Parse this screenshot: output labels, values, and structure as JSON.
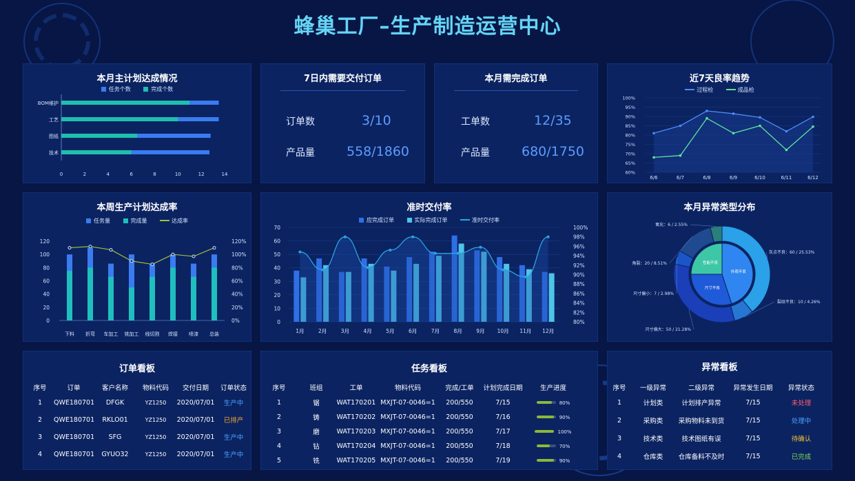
{
  "header": {
    "title": "蜂巢工厂–生产制造运营中心"
  },
  "monthly_plan": {
    "title": "本月主计划达成情况",
    "legend": [
      "任务个数",
      "完成个数"
    ],
    "colors": [
      "#3a7cf0",
      "#1fbfae"
    ],
    "chart_data": {
      "type": "bar",
      "orientation": "horizontal",
      "categories": [
        "BOM维护",
        "工艺",
        "图纸",
        "技术"
      ],
      "series": [
        {
          "name": "任务个数",
          "values": [
            13.5,
            13.5,
            12.8,
            12.7
          ]
        },
        {
          "name": "完成个数",
          "values": [
            11,
            10,
            6.5,
            6
          ]
        }
      ],
      "xlim": [
        0,
        14
      ],
      "xticks": [
        "0",
        "2",
        "4",
        "6",
        "8",
        "10",
        "12",
        "14"
      ]
    }
  },
  "delivery7": {
    "title": "7日内需要交付订单",
    "order_label": "订单数",
    "order_value": "3/10",
    "product_label": "产品量",
    "product_value": "558/1860"
  },
  "month_orders": {
    "title": "本月需完成订单",
    "order_label": "工单数",
    "order_value": "12/35",
    "product_label": "产品量",
    "product_value": "680/1750"
  },
  "yield_trend": {
    "title": "近7天良率趋势",
    "legend": [
      "过程检",
      "成品检"
    ],
    "colors": [
      "#4d8cf5",
      "#5fe39a"
    ],
    "chart_data": {
      "type": "line",
      "x": [
        "6/6",
        "6/7",
        "6/8",
        "6/9",
        "6/10",
        "6/11",
        "6/12"
      ],
      "series": [
        {
          "name": "过程检",
          "values": [
            81,
            85,
            93,
            91.5,
            89.5,
            82,
            89.8
          ]
        },
        {
          "name": "成品检",
          "values": [
            68,
            69,
            89,
            81,
            85,
            72,
            84.5
          ]
        }
      ],
      "ylim": [
        60,
        100
      ],
      "yticks": [
        "60%",
        "65%",
        "70%",
        "75%",
        "80%",
        "85%",
        "90%",
        "95%",
        "100%"
      ]
    }
  },
  "weekly_plan": {
    "title": "本周生产计划达成率",
    "legend": [
      "任务量",
      "完成量",
      "达成率"
    ],
    "colors": [
      "#3a7cf0",
      "#1fbfbf",
      "#9cc23c"
    ],
    "chart_data": {
      "type": "bar",
      "categories": [
        "下料",
        "折弯",
        "车加工",
        "铣加工",
        "线切割",
        "焊接",
        "喷漆",
        "总装"
      ],
      "series": [
        {
          "name": "任务量",
          "values": [
            100,
            110,
            86,
            100,
            86,
            100,
            86,
            100
          ]
        },
        {
          "name": "完成量",
          "values": [
            75,
            80,
            66,
            50,
            66,
            80,
            66,
            80
          ]
        },
        {
          "name": "达成率",
          "values": [
            110,
            112,
            107,
            90,
            85,
            100,
            97,
            110
          ]
        }
      ],
      "ylim_left": [
        0,
        120
      ],
      "ylim_right": [
        0,
        120
      ],
      "yticks_left": [
        "0",
        "20",
        "40",
        "60",
        "80",
        "100",
        "120"
      ],
      "yticks_right": [
        "0%",
        "20%",
        "40%",
        "60%",
        "80%",
        "100%",
        "120%"
      ]
    }
  },
  "ontime": {
    "title": "准时交付率",
    "legend": [
      "应完成订单",
      "实际完成订单",
      "准时交付率"
    ],
    "colors": [
      "#2f6fe8",
      "#4fc3e8",
      "#2aa5e0"
    ],
    "chart_data": {
      "type": "bar",
      "categories": [
        "1月",
        "2月",
        "3月",
        "4月",
        "5月",
        "6月",
        "7月",
        "8月",
        "9月",
        "10月",
        "11月",
        "12月"
      ],
      "series": [
        {
          "name": "应完成订单",
          "values": [
            38,
            47,
            37,
            47,
            41,
            48,
            52,
            64,
            53,
            48,
            42,
            37
          ]
        },
        {
          "name": "实际完成订单",
          "values": [
            33,
            42,
            37,
            43,
            38,
            43,
            49,
            58,
            52,
            43,
            39,
            36
          ]
        },
        {
          "name": "准时交付率",
          "values": [
            94.8,
            91,
            98,
            91.5,
            95.2,
            98,
            94.5,
            94.5,
            95.8,
            91,
            89.5,
            98
          ]
        }
      ],
      "ylim_left": [
        0,
        70
      ],
      "ylim_right": [
        80,
        100
      ],
      "yticks_left": [
        "0",
        "10",
        "20",
        "30",
        "40",
        "50",
        "60",
        "70"
      ],
      "yticks_right": [
        "80%",
        "82%",
        "84%",
        "86%",
        "88%",
        "90%",
        "92%",
        "94%",
        "96%",
        "98%",
        "100%"
      ]
    }
  },
  "anomaly": {
    "title": "本月异常类型分布",
    "chart_data": {
      "type": "pie",
      "inner": [
        {
          "name": "外观不良",
          "value": 45,
          "color": "#2f86f0"
        },
        {
          "name": "尺寸不良",
          "value": 30,
          "color": "#1f5ad8"
        },
        {
          "name": "性能不良",
          "value": 25,
          "color": "#3ec7a6"
        }
      ],
      "outer": [
        {
          "label": "灰点不良：60 / 25.53%",
          "value": 25.53,
          "color": "#2aa1e8"
        },
        {
          "label": "裂纹不良：10 / 4.26%",
          "value": 4.26,
          "color": "#2676d4"
        },
        {
          "label": "尺寸偏大：50 / 21.28%",
          "value": 21.28,
          "color": "#1a3fb8"
        },
        {
          "label": "尺寸偏小：7 / 2.98%",
          "value": 2.98,
          "color": "#1b56c9"
        },
        {
          "label": "角裂：20 / 8.51%",
          "value": 8.51,
          "color": "#1f4a8f"
        },
        {
          "label": "氧化：6 / 2.55%",
          "value": 2.55,
          "color": "#2a7f7a"
        }
      ]
    }
  },
  "order_board": {
    "title": "订单看板",
    "headers": [
      "序号",
      "订单",
      "客户名称",
      "物料代码",
      "交付日期",
      "订单状态"
    ],
    "rows": [
      {
        "no": "1",
        "order": "QWE180701",
        "customer": "DFGK",
        "code": "YZ1250",
        "date": "2020/07/01",
        "status": "生产中",
        "color": "#4aa0ff"
      },
      {
        "no": "2",
        "order": "QWE180701",
        "customer": "RKLO01",
        "code": "YZ1250",
        "date": "2020/07/01",
        "status": "已排产",
        "color": "#f2a531"
      },
      {
        "no": "3",
        "order": "QWE180701",
        "customer": "SFG",
        "code": "YZ1250",
        "date": "2020/07/01",
        "status": "生产中",
        "color": "#4aa0ff"
      },
      {
        "no": "4",
        "order": "QWE180701",
        "customer": "GYUO32",
        "code": "YZ1250",
        "date": "2020/07/01",
        "status": "生产中",
        "color": "#4aa0ff"
      }
    ]
  },
  "task_board": {
    "title": "任务看板",
    "headers": [
      "序号",
      "班组",
      "工单",
      "物料代码",
      "完成/工单",
      "计划完成日期",
      "生产进度"
    ],
    "rows": [
      {
        "no": "1",
        "team": "锯",
        "wo": "WAT170201",
        "code": "MXJT-07-0046=1",
        "done": "200/550",
        "date": "7/15",
        "progress": 0.8,
        "pct": "80%"
      },
      {
        "no": "2",
        "team": "铸",
        "wo": "WAT170202",
        "code": "MXJT-07-0046=1",
        "done": "200/550",
        "date": "7/16",
        "progress": 0.9,
        "pct": "90%"
      },
      {
        "no": "3",
        "team": "磨",
        "wo": "WAT170203",
        "code": "MXJT-07-0046=1",
        "done": "200/550",
        "date": "7/17",
        "progress": 1.0,
        "pct": "100%"
      },
      {
        "no": "4",
        "team": "钻",
        "wo": "WAT170204",
        "code": "MXJT-07-0046=1",
        "done": "200/550",
        "date": "7/18",
        "progress": 0.7,
        "pct": "70%"
      },
      {
        "no": "5",
        "team": "铣",
        "wo": "WAT170205",
        "code": "MXJT-07-0046=1",
        "done": "200/550",
        "date": "7/19",
        "progress": 0.9,
        "pct": "90%"
      }
    ]
  },
  "anomaly_board": {
    "title": "异常看板",
    "headers": [
      "序号",
      "一级异常",
      "二级异常",
      "异常发生日期",
      "异常状态"
    ],
    "rows": [
      {
        "no": "1",
        "l1": "计划类",
        "l2": "计划排产异常",
        "date": "7/15",
        "status": "未处理",
        "color": "#ff5c6c"
      },
      {
        "no": "2",
        "l1": "采购类",
        "l2": "采购物料未到货",
        "date": "7/15",
        "status": "处理中",
        "color": "#4aa0ff"
      },
      {
        "no": "3",
        "l1": "技术类",
        "l2": "技术图纸有误",
        "date": "7/15",
        "status": "待确认",
        "color": "#f2c531"
      },
      {
        "no": "4",
        "l1": "仓库类",
        "l2": "仓库备料不及时",
        "date": "7/15",
        "status": "已完成",
        "color": "#7ed957"
      }
    ]
  }
}
